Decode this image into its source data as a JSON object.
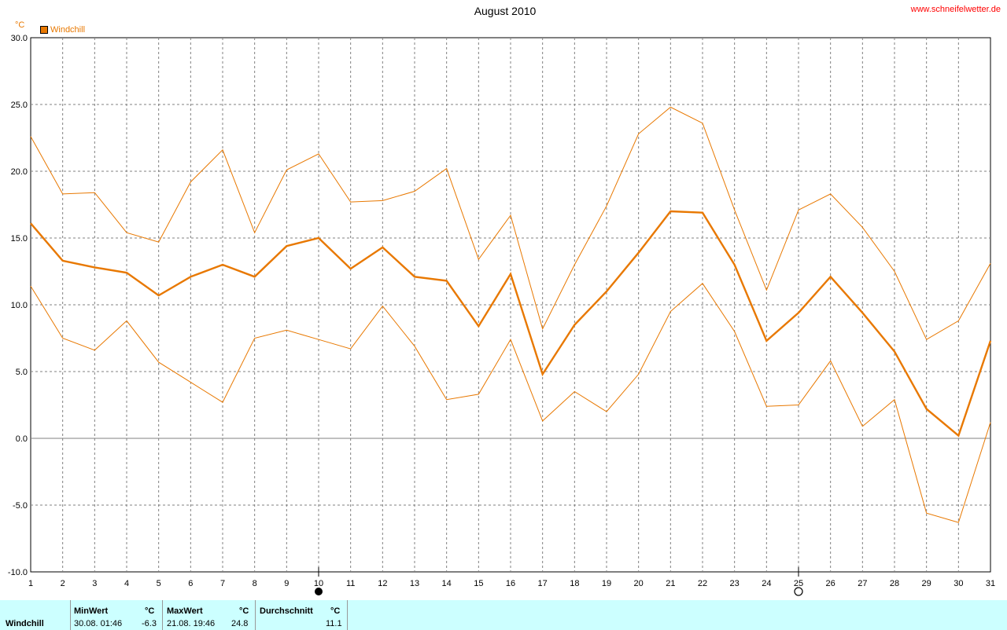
{
  "header": {
    "title": "August 2010",
    "site": "www.schneifelwetter.de",
    "unit": "°C",
    "legend_label": "Windchill"
  },
  "colors": {
    "series": "#e87800",
    "grid": "#808080",
    "stats_bg": "#ccffff"
  },
  "chart_data": {
    "type": "line",
    "title": "August 2010",
    "ylabel": "°C",
    "xlabel": "",
    "ylim": [
      -10,
      30
    ],
    "xlim": [
      1,
      31
    ],
    "grid": true,
    "legend": "top-left",
    "y_ticks": [
      "30.0",
      "25.0",
      "20.0",
      "15.0",
      "10.0",
      "5.0",
      "0.0",
      "-5.0",
      "-10.0"
    ],
    "x": [
      1,
      2,
      3,
      4,
      5,
      6,
      7,
      8,
      9,
      10,
      11,
      12,
      13,
      14,
      15,
      16,
      17,
      18,
      19,
      20,
      21,
      22,
      23,
      24,
      25,
      26,
      27,
      28,
      29,
      30,
      31
    ],
    "series": [
      {
        "name": "Windchill",
        "role": "mean",
        "values": [
          16.1,
          13.3,
          12.8,
          12.4,
          10.7,
          12.1,
          13.0,
          12.1,
          14.4,
          15.0,
          12.7,
          14.3,
          12.1,
          11.8,
          8.4,
          12.3,
          4.8,
          8.5,
          11.0,
          13.9,
          17.0,
          16.9,
          13.0,
          7.3,
          9.4,
          12.1,
          9.4,
          6.5,
          2.2,
          0.2,
          7.3
        ]
      },
      {
        "role": "max",
        "values": [
          22.6,
          18.3,
          18.4,
          15.4,
          14.7,
          19.2,
          21.6,
          15.4,
          20.1,
          21.3,
          17.7,
          17.8,
          18.5,
          20.2,
          13.4,
          16.7,
          8.2,
          13.0,
          17.4,
          22.8,
          24.8,
          23.6,
          17.1,
          11.1,
          17.1,
          18.3,
          15.8,
          12.5,
          7.4,
          8.8,
          13.1
        ]
      },
      {
        "role": "min",
        "values": [
          11.4,
          7.5,
          6.6,
          8.8,
          5.7,
          4.2,
          2.7,
          7.5,
          8.1,
          7.4,
          6.7,
          9.9,
          6.9,
          2.9,
          3.3,
          7.4,
          1.3,
          3.5,
          2.0,
          4.8,
          9.5,
          11.6,
          8.0,
          2.4,
          2.5,
          5.8,
          0.9,
          2.9,
          -5.6,
          -6.3,
          1.2
        ]
      }
    ],
    "moon_phases": [
      {
        "day": 10,
        "phase": "new-moon"
      },
      {
        "day": 25,
        "phase": "full-moon"
      }
    ]
  },
  "stats": {
    "row_label": "Windchill",
    "min": {
      "header": "MinWert",
      "unit": "°C",
      "datetime": "30.08.  01:46",
      "value": "-6.3"
    },
    "max": {
      "header": "MaxWert",
      "unit": "°C",
      "datetime": "21.08.  19:46",
      "value": "24.8"
    },
    "avg": {
      "header": "Durchschnitt",
      "unit": "°C",
      "value": "11.1"
    }
  }
}
